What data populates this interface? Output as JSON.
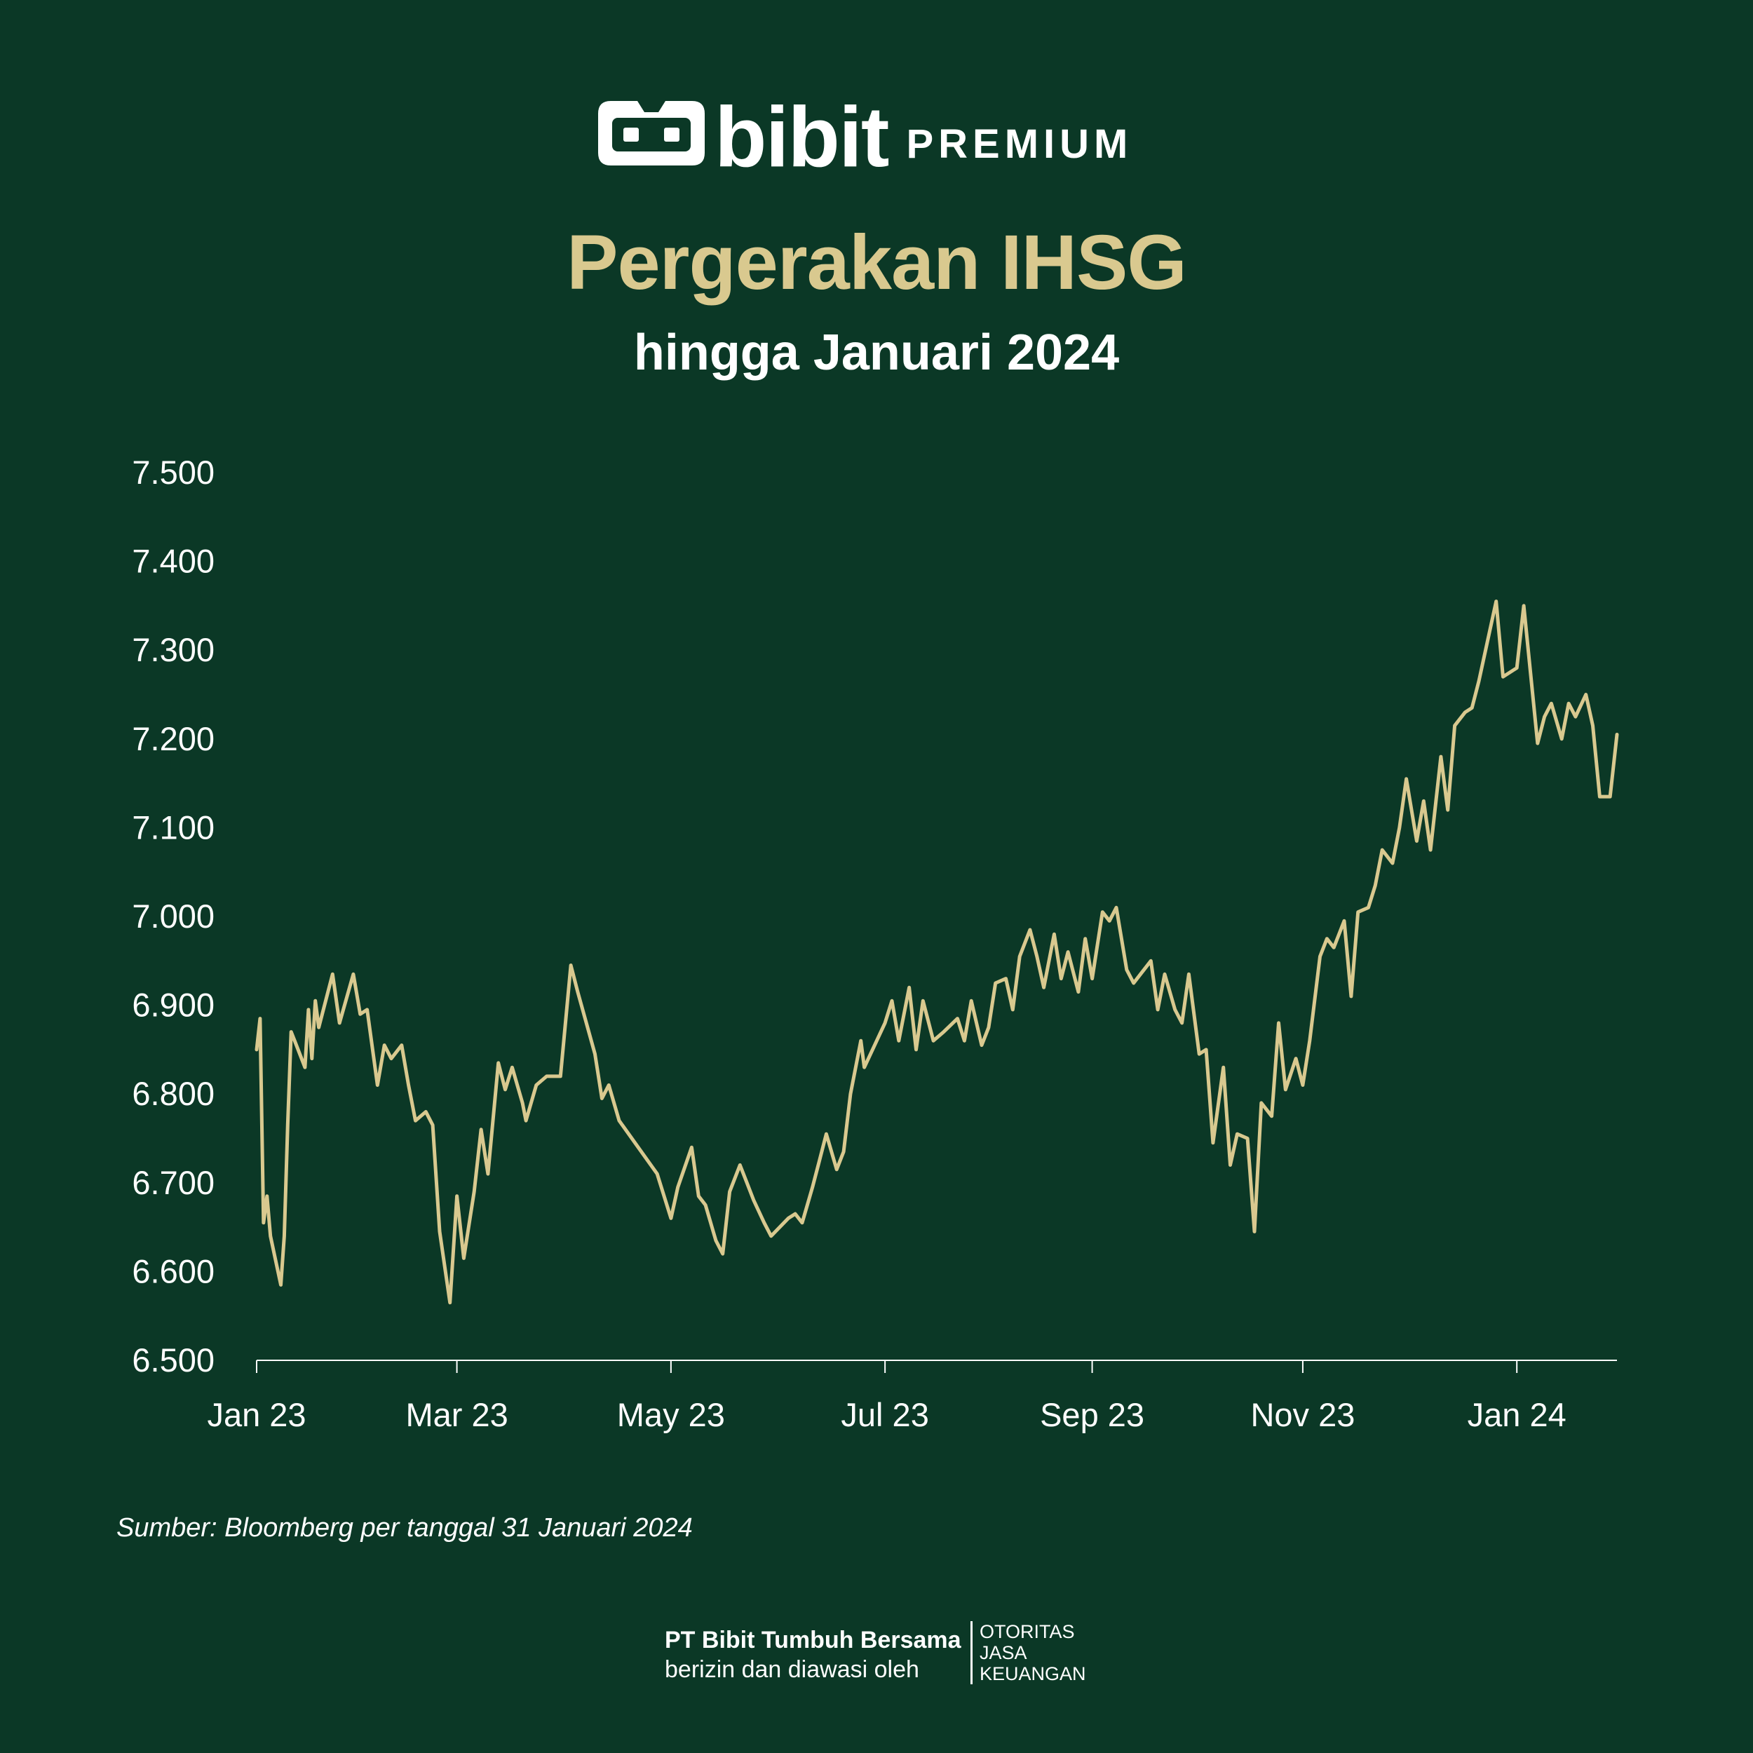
{
  "brand": {
    "name": "bibit",
    "tagline": "PREMIUM",
    "logo_icon": "bibit-logo-icon"
  },
  "header": {
    "title": "Pergerakan IHSG",
    "subtitle": "hingga Januari 2024"
  },
  "colors": {
    "background": "#0b3826",
    "line": "#d9c98f",
    "title": "#d9c98f",
    "text": "#ffffff"
  },
  "chart_data": {
    "type": "line",
    "title": "Pergerakan IHSG",
    "subtitle": "hingga Januari 2024",
    "xlabel": "",
    "ylabel": "",
    "x_tick_labels": [
      "Jan 23",
      "Mar 23",
      "May 23",
      "Jul 23",
      "Sep 23",
      "Nov 23",
      "Jan 24"
    ],
    "x_tick_dates": [
      "2023-01-02",
      "2023-03-01",
      "2023-05-02",
      "2023-07-03",
      "2023-09-01",
      "2023-11-01",
      "2024-01-02"
    ],
    "xlim": [
      "2023-01-02",
      "2024-01-31"
    ],
    "ylim": [
      6500,
      7500
    ],
    "y_ticks": [
      6500,
      6600,
      6700,
      6800,
      6900,
      7000,
      7100,
      7200,
      7300,
      7400,
      7500
    ],
    "y_tick_labels": [
      "6.500",
      "6.600",
      "6.700",
      "6.800",
      "6.900",
      "7.000",
      "7.100",
      "7.200",
      "7.300",
      "7.400",
      "7.500"
    ],
    "grid": false,
    "legend": "none",
    "series": [
      {
        "x": [
          "2023-01-02",
          "2023-01-03",
          "2023-01-04",
          "2023-01-05",
          "2023-01-06",
          "2023-01-09",
          "2023-01-10",
          "2023-01-11",
          "2023-01-12",
          "2023-01-13",
          "2023-01-16",
          "2023-01-17",
          "2023-01-18",
          "2023-01-19",
          "2023-01-20",
          "2023-01-24",
          "2023-01-26",
          "2023-01-30",
          "2023-02-01",
          "2023-02-03",
          "2023-02-06",
          "2023-02-08",
          "2023-02-10",
          "2023-02-13",
          "2023-02-15",
          "2023-02-17",
          "2023-02-20",
          "2023-02-22",
          "2023-02-24",
          "2023-02-27",
          "2023-03-01",
          "2023-03-03",
          "2023-03-06",
          "2023-03-08",
          "2023-03-10",
          "2023-03-13",
          "2023-03-15",
          "2023-03-17",
          "2023-03-20",
          "2023-03-21",
          "2023-03-24",
          "2023-03-27",
          "2023-03-29",
          "2023-03-31",
          "2023-04-03",
          "2023-04-05",
          "2023-04-10",
          "2023-04-12",
          "2023-04-14",
          "2023-04-17",
          "2023-04-28",
          "2023-05-02",
          "2023-05-04",
          "2023-05-08",
          "2023-05-10",
          "2023-05-12",
          "2023-05-15",
          "2023-05-17",
          "2023-05-19",
          "2023-05-22",
          "2023-05-24",
          "2023-05-26",
          "2023-05-29",
          "2023-05-31",
          "2023-06-05",
          "2023-06-07",
          "2023-06-09",
          "2023-06-12",
          "2023-06-14",
          "2023-06-16",
          "2023-06-19",
          "2023-06-21",
          "2023-06-23",
          "2023-06-26",
          "2023-06-27",
          "2023-07-03",
          "2023-07-05",
          "2023-07-07",
          "2023-07-10",
          "2023-07-12",
          "2023-07-14",
          "2023-07-17",
          "2023-07-20",
          "2023-07-24",
          "2023-07-26",
          "2023-07-28",
          "2023-07-31",
          "2023-08-02",
          "2023-08-04",
          "2023-08-07",
          "2023-08-09",
          "2023-08-11",
          "2023-08-14",
          "2023-08-16",
          "2023-08-18",
          "2023-08-21",
          "2023-08-23",
          "2023-08-25",
          "2023-08-28",
          "2023-08-30",
          "2023-09-01",
          "2023-09-04",
          "2023-09-06",
          "2023-09-08",
          "2023-09-11",
          "2023-09-13",
          "2023-09-15",
          "2023-09-18",
          "2023-09-20",
          "2023-09-22",
          "2023-09-25",
          "2023-09-27",
          "2023-09-29",
          "2023-10-02",
          "2023-10-04",
          "2023-10-06",
          "2023-10-09",
          "2023-10-11",
          "2023-10-13",
          "2023-10-16",
          "2023-10-18",
          "2023-10-20",
          "2023-10-23",
          "2023-10-25",
          "2023-10-27",
          "2023-10-30",
          "2023-11-01",
          "2023-11-03",
          "2023-11-06",
          "2023-11-08",
          "2023-11-10",
          "2023-11-13",
          "2023-11-15",
          "2023-11-17",
          "2023-11-20",
          "2023-11-22",
          "2023-11-24",
          "2023-11-27",
          "2023-11-29",
          "2023-12-01",
          "2023-12-04",
          "2023-12-06",
          "2023-12-08",
          "2023-12-11",
          "2023-12-13",
          "2023-12-15",
          "2023-12-18",
          "2023-12-20",
          "2023-12-22",
          "2023-12-27",
          "2023-12-29",
          "2024-01-02",
          "2024-01-04",
          "2024-01-08",
          "2024-01-10",
          "2024-01-12",
          "2024-01-15",
          "2024-01-17",
          "2024-01-19",
          "2024-01-22",
          "2024-01-24",
          "2024-01-26",
          "2024-01-29",
          "2024-01-31"
        ],
        "values": [
          6850,
          6885,
          6655,
          6685,
          6640,
          6585,
          6640,
          6765,
          6870,
          6860,
          6830,
          6895,
          6840,
          6905,
          6875,
          6935,
          6880,
          6935,
          6890,
          6895,
          6810,
          6855,
          6840,
          6855,
          6810,
          6770,
          6780,
          6765,
          6645,
          6565,
          6685,
          6615,
          6690,
          6760,
          6710,
          6835,
          6805,
          6830,
          6790,
          6770,
          6810,
          6820,
          6820,
          6820,
          6945,
          6915,
          6845,
          6795,
          6810,
          6770,
          6710,
          6660,
          6695,
          6740,
          6685,
          6675,
          6635,
          6620,
          6690,
          6720,
          6700,
          6680,
          6655,
          6640,
          6660,
          6665,
          6655,
          6695,
          6725,
          6755,
          6715,
          6735,
          6800,
          6860,
          6830,
          6880,
          6905,
          6860,
          6920,
          6850,
          6905,
          6860,
          6870,
          6885,
          6860,
          6905,
          6855,
          6875,
          6925,
          6930,
          6895,
          6955,
          6985,
          6955,
          6920,
          6980,
          6930,
          6960,
          6915,
          6975,
          6930,
          7005,
          6995,
          7010,
          6940,
          6925,
          6935,
          6950,
          6895,
          6935,
          6895,
          6880,
          6935,
          6845,
          6850,
          6745,
          6830,
          6720,
          6755,
          6750,
          6645,
          6790,
          6775,
          6880,
          6805,
          6840,
          6810,
          6860,
          6955,
          6975,
          6965,
          6995,
          6910,
          7005,
          7010,
          7035,
          7075,
          7060,
          7100,
          7155,
          7085,
          7130,
          7075,
          7180,
          7120,
          7215,
          7230,
          7235,
          7265,
          7355,
          7270,
          7280,
          7350,
          7195,
          7225,
          7240,
          7200,
          7240,
          7225,
          7250,
          7215,
          7135,
          7135,
          7205
        ]
      }
    ]
  },
  "footer": {
    "source": "Sumber: Bloomberg per tanggal 31 Januari 2024",
    "company": "PT Bibit Tumbuh Bersama",
    "license": "berizin dan diawasi oleh",
    "ojk_lines": [
      "OTORITAS",
      "JASA",
      "KEUANGAN"
    ]
  }
}
